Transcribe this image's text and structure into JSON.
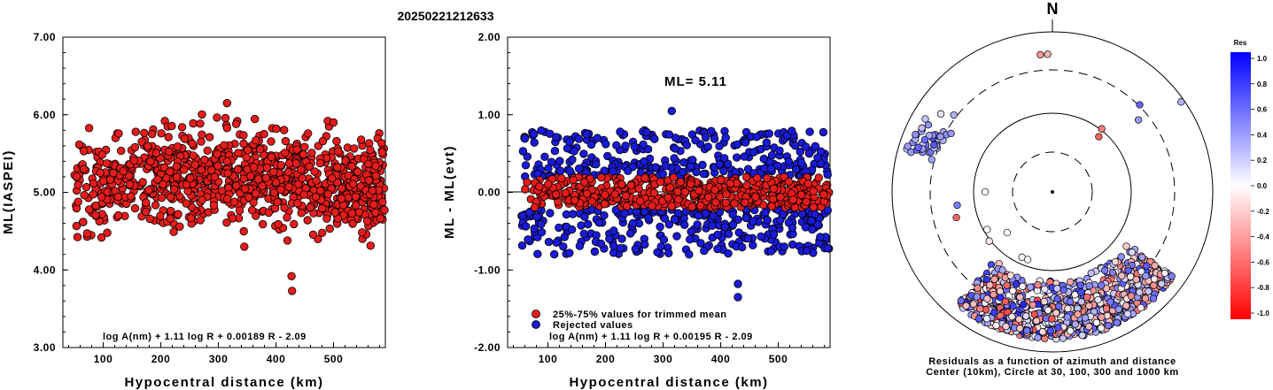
{
  "figure": {
    "title": "20250221212633"
  },
  "chart_data": [
    {
      "type": "scatter",
      "ylabel": "ML(IASPEI)",
      "xlabel": "Hypocentral distance (km)",
      "xlim": [
        30,
        590
      ],
      "ylim": [
        3.0,
        7.0
      ],
      "x_ticks": [
        "100",
        "200",
        "300",
        "400",
        "500"
      ],
      "y_ticks": [
        "3.00",
        "4.00",
        "5.00",
        "6.00",
        "7.00"
      ],
      "equation": "log A(nm) + 1.11 log R + 0.00189 R - 2.09",
      "series": [
        {
          "color": "#e81c1c",
          "distribution": {
            "count": 1000,
            "x_range": [
              50,
              590
            ],
            "mean_y": 5.11,
            "spread_y": 0.3
          },
          "outliers": [
            [
              315,
              6.15
            ],
            [
              315,
              5.83
            ],
            [
              427,
              3.92
            ],
            [
              428,
              3.73
            ],
            [
              345,
              4.3
            ],
            [
              420,
              4.38
            ],
            [
              72,
              4.43
            ],
            [
              72,
              4.47
            ],
            [
              490,
              5.92
            ],
            [
              500,
              5.9
            ]
          ]
        }
      ]
    },
    {
      "type": "scatter",
      "ylabel": "ML - ML(evt)",
      "xlabel": "Hypocentral distance (km)",
      "xlim": [
        30,
        590
      ],
      "ylim": [
        -2.0,
        2.0
      ],
      "x_ticks": [
        "100",
        "200",
        "300",
        "400",
        "500"
      ],
      "y_ticks": [
        "-2.00",
        "-1.00",
        "0.00",
        "1.00",
        "2.00"
      ],
      "annotation": "ML= 5.11",
      "equation": "log A(nm) + 1.11 log R + 0.00195 R - 2.09",
      "legend": {
        "position": "bottom-left",
        "entries": [
          {
            "label": "25%-75% values for trimmed mean",
            "color": "#e81c1c"
          },
          {
            "label": "Rejected values",
            "color": "#1a1ad9"
          }
        ]
      },
      "reference_line": 0.0,
      "series": [
        {
          "name": "25%-75% values for trimmed mean",
          "color": "#e81c1c",
          "distribution": {
            "count": 500,
            "x_range": [
              60,
              590
            ],
            "y_range": [
              -0.2,
              0.2
            ]
          }
        },
        {
          "name": "Rejected values",
          "color": "#1a1ad9",
          "distribution": {
            "count": 600,
            "x_range": [
              50,
              590
            ],
            "y_range": [
              -0.8,
              0.8
            ]
          },
          "outliers": [
            [
              315,
              1.05
            ],
            [
              430,
              -1.18
            ],
            [
              430,
              -1.35
            ],
            [
              345,
              -0.8
            ],
            [
              590,
              0.8
            ]
          ]
        }
      ]
    },
    {
      "type": "polar-scatter",
      "north_label": "N",
      "caption_line1": "Residuals as a function of azimuth and distance",
      "caption_line2": "Center (10km), Circle at 30, 100, 300 and 1000 km",
      "rings_km": [
        30,
        100,
        300,
        1000
      ],
      "colorbar": {
        "title": "Res",
        "ticks": [
          "1.0",
          "0.8",
          "0.6",
          "0.4",
          "0.2",
          "0.0",
          "-0.2",
          "-0.4",
          "-0.6",
          "-0.8",
          "-1.0"
        ],
        "top_color": "#0000ff",
        "mid_color": "#ffffff",
        "bottom_color": "#ff0000"
      },
      "clusters": [
        {
          "azimuth_range_deg": [
            125,
            220
          ],
          "radius_fraction_range": [
            0.55,
            0.92
          ],
          "count": 900
        },
        {
          "azimuth_range_deg": [
            285,
            300
          ],
          "radius_fraction_range": [
            0.75,
            0.95
          ],
          "count": 40
        }
      ]
    }
  ]
}
